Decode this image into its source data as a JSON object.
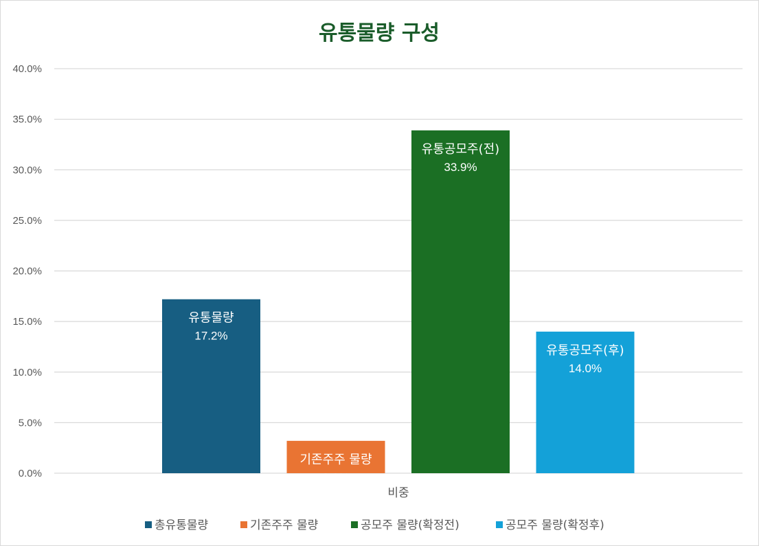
{
  "chart_data": {
    "type": "bar",
    "title": "유통물량 구성",
    "xlabel": "비중",
    "ylabel": "",
    "categories": [
      "비중"
    ],
    "ylim": [
      0,
      0.4
    ],
    "ytick_values": [
      0,
      0.05,
      0.1,
      0.15,
      0.2,
      0.25,
      0.3,
      0.35,
      0.4
    ],
    "yticks": [
      "0.0%",
      "5.0%",
      "10.0%",
      "15.0%",
      "20.0%",
      "25.0%",
      "30.0%",
      "35.0%",
      "40.0%"
    ],
    "grid": true,
    "legend_position": "bottom",
    "series": [
      {
        "name": "총유통물량",
        "values": [
          0.172
        ],
        "label_name": "유통물량",
        "label_value": "17.2%",
        "color": "#175e82"
      },
      {
        "name": "기존주주 물량",
        "values": [
          0.032
        ],
        "label_name": "기존주주 물량",
        "label_value": "3.2%",
        "color": "#e97433"
      },
      {
        "name": "공모주 물량(확정전)",
        "values": [
          0.339
        ],
        "label_name": "유통공모주(전)",
        "label_value": "33.9%",
        "color": "#1b6f24"
      },
      {
        "name": "공모주 물량(확정후)",
        "values": [
          0.14
        ],
        "label_name": "유통공모주(후)",
        "label_value": "14.0%",
        "color": "#14a1d8"
      }
    ]
  }
}
